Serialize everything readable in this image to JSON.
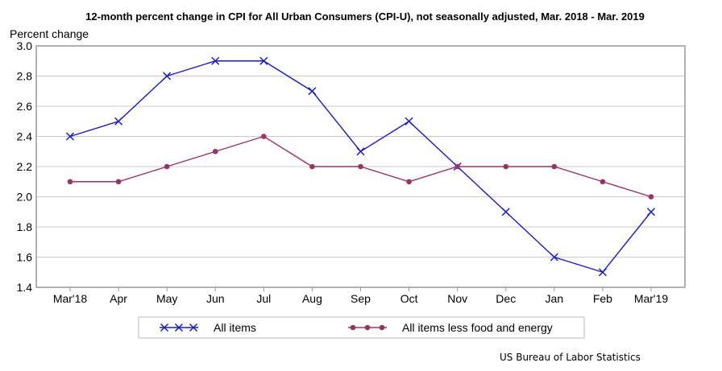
{
  "chart_data": {
    "type": "line",
    "title": "12-month percent change in CPI for All Urban Consumers (CPI-U), not seasonally adjusted, Mar. 2018 - Mar. 2019",
    "ylabel": "Percent change",
    "xlabel": "",
    "categories": [
      "Mar'18",
      "Apr",
      "May",
      "Jun",
      "Jul",
      "Aug",
      "Sep",
      "Oct",
      "Nov",
      "Dec",
      "Jan",
      "Feb",
      "Mar'19"
    ],
    "ylim": [
      1.4,
      3.0
    ],
    "yticks": [
      "1.4",
      "1.6",
      "1.8",
      "2.0",
      "2.2",
      "2.4",
      "2.6",
      "2.8",
      "3.0"
    ],
    "grid": true,
    "legend_placement": "bottom",
    "series": [
      {
        "name": "All items",
        "color": "#1a1acc",
        "marker": "x",
        "values": [
          2.4,
          2.5,
          2.8,
          2.9,
          2.9,
          2.7,
          2.3,
          2.5,
          2.2,
          1.9,
          1.6,
          1.5,
          1.9
        ]
      },
      {
        "name": "All items less food and energy",
        "color": "#993366",
        "marker": "circle",
        "values": [
          2.1,
          2.1,
          2.2,
          2.3,
          2.4,
          2.2,
          2.2,
          2.1,
          2.2,
          2.2,
          2.2,
          2.1,
          2.0
        ]
      }
    ],
    "source": "US Bureau of Labor Statistics"
  }
}
